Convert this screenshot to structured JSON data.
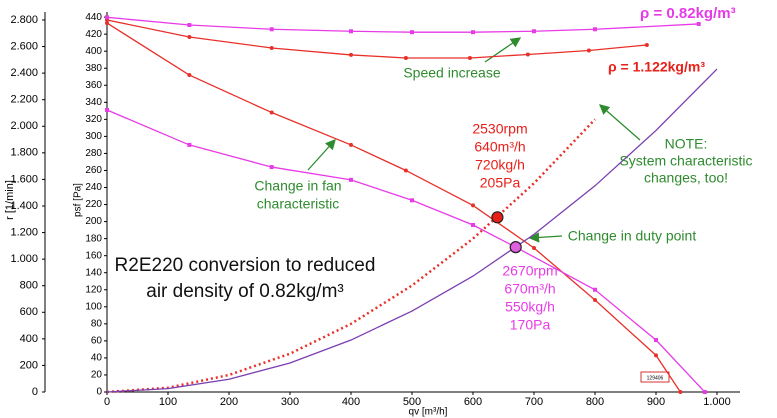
{
  "chart_data": {
    "type": "line",
    "y_label": "r [1/min]",
    "y2_label": "psf [Pa]",
    "x_label": "qv [m³/h]",
    "xlim": [
      0,
      1000
    ],
    "xticks": [
      0,
      100,
      200,
      300,
      400,
      500,
      600,
      700,
      800,
      900,
      {
        "value": 1000,
        "label": "1.000"
      }
    ],
    "ylim": [
      0,
      2860
    ],
    "yticks": [
      0,
      200,
      400,
      600,
      800,
      {
        "value": 1000,
        "label": "1.000"
      },
      {
        "value": 1200,
        "label": "1.200"
      },
      {
        "value": 1400,
        "label": "1.400"
      },
      {
        "value": 1600,
        "label": "1.600"
      },
      {
        "value": 1800,
        "label": "1.800"
      },
      {
        "value": 2000,
        "label": "2.000"
      },
      {
        "value": 2200,
        "label": "2.200"
      },
      {
        "value": 2400,
        "label": "2.400"
      },
      {
        "value": 2600,
        "label": "2.600"
      },
      {
        "value": 2800,
        "label": "2.800"
      }
    ],
    "y2lim": [
      0,
      446
    ],
    "y2ticks": [
      0,
      20,
      40,
      60,
      80,
      100,
      120,
      140,
      160,
      180,
      200,
      220,
      240,
      260,
      280,
      300,
      320,
      340,
      360,
      380,
      400,
      420,
      440
    ],
    "series": [
      {
        "color": "#e8302a",
        "axis": "y",
        "style": "solid",
        "marker": "dot",
        "x": [
          0,
          135,
          270,
          400,
          490,
          595,
          690,
          790,
          885
        ],
        "values": [
          2800,
          2672,
          2589,
          2537,
          2514,
          2514,
          2540,
          2570,
          2612
        ]
      },
      {
        "color": "#e83be8",
        "axis": "y",
        "style": "solid",
        "marker": "square",
        "x": [
          0,
          135,
          270,
          400,
          500,
          600,
          700,
          800,
          970
        ],
        "values": [
          2820,
          2762,
          2730,
          2715,
          2708,
          2708,
          2715,
          2730,
          2770
        ]
      },
      {
        "color": "#e8302a",
        "axis": "y2",
        "style": "solid",
        "marker": "dot",
        "x": [
          0,
          135,
          270,
          400,
          490,
          600,
          700,
          800,
          900,
          940
        ],
        "values": [
          433,
          372,
          328,
          290,
          260,
          219,
          169,
          108,
          43,
          0
        ]
      },
      {
        "color": "#e83be8",
        "axis": "y2",
        "style": "solid",
        "marker": "square",
        "x": [
          0,
          135,
          270,
          400,
          500,
          600,
          670,
          800,
          900,
          980
        ],
        "values": [
          331,
          290,
          264,
          249,
          225,
          196,
          170,
          120,
          61,
          0
        ]
      },
      {
        "color": "#e8302a",
        "axis": "y2",
        "style": "dotted",
        "marker": "none",
        "x": [
          0,
          100,
          200,
          300,
          400,
          500,
          600,
          700,
          800
        ],
        "values": [
          0,
          5,
          20,
          45,
          80,
          125,
          180,
          245,
          320
        ]
      },
      {
        "color": "#7a3fb0",
        "axis": "y2",
        "style": "solid",
        "marker": "none",
        "x": [
          0,
          100,
          200,
          300,
          400,
          500,
          600,
          700,
          800,
          900,
          1000
        ],
        "values": [
          0,
          4,
          15,
          34,
          61,
          95,
          136,
          185,
          242,
          307,
          379
        ]
      }
    ],
    "duty_points": [
      {
        "color": "#e8201a",
        "x": 640,
        "value": 205
      },
      {
        "color": "#e060e0",
        "x": 670,
        "value": 170
      }
    ],
    "annotations": [
      {
        "color": "#e83be8",
        "lines": [
          "ρ = 0.82kg/m³"
        ]
      },
      {
        "color": "#e8201a",
        "lines": [
          "ρ = 1.122kg/m³"
        ]
      },
      {
        "color": "#2e8b2e",
        "lines": [
          "Speed increase"
        ]
      },
      {
        "color": "#e8201a",
        "lines": [
          "2530rpm",
          "640m³/h",
          "720kg/h",
          "205Pa"
        ]
      },
      {
        "color": "#2e8b2e",
        "lines": [
          "NOTE:",
          "System characteristic",
          "changes, too!"
        ]
      },
      {
        "color": "#2e8b2e",
        "lines": [
          "Change in fan",
          "characteristic"
        ]
      },
      {
        "color": "#2e8b2e",
        "lines": [
          "Change in duty point"
        ]
      },
      {
        "color": "#111111",
        "lines": [
          "R2E220 conversion to reduced",
          "air density of 0.82kg/m³"
        ]
      },
      {
        "color": "#e83be8",
        "lines": [
          "2670rpm",
          "670m³/h",
          "550kg/h",
          "170Pa"
        ]
      }
    ],
    "stamp": "129406"
  }
}
